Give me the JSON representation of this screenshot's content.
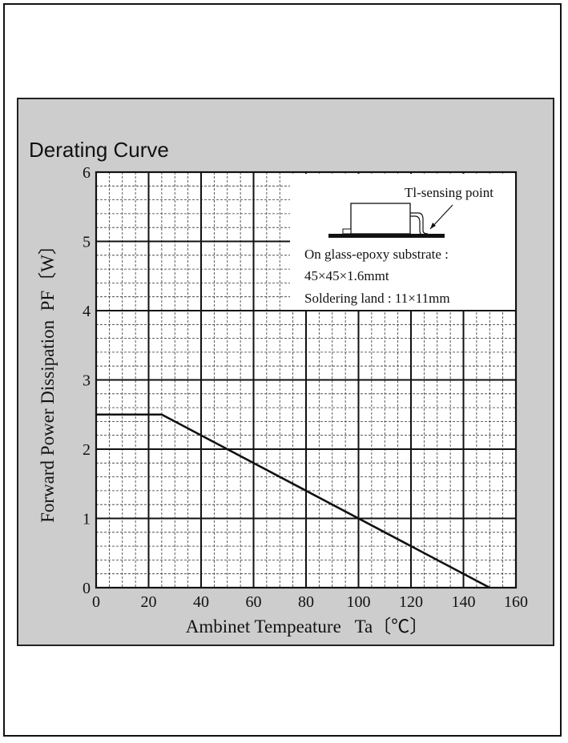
{
  "chart_data": {
    "type": "line",
    "title": "Derating Curve",
    "xlabel": "Ambinet Tempeature   Ta〔℃〕",
    "ylabel": "Forward Power Dissipation  PF〔W〕",
    "xlim": [
      0,
      160
    ],
    "ylim": [
      0,
      6
    ],
    "x_ticks": [
      0,
      20,
      40,
      60,
      80,
      100,
      120,
      140,
      160
    ],
    "y_ticks": [
      0,
      1,
      2,
      3,
      4,
      5,
      6
    ],
    "grid": true,
    "series": [
      {
        "x": [
          0,
          25,
          150
        ],
        "y": [
          2.5,
          2.5,
          0
        ]
      }
    ],
    "annotation": {
      "label": "Tl-sensing point",
      "lines": [
        "On glass-epoxy substrate :",
        "45×45×1.6mmt",
        "Soldering land : 11×11mm"
      ]
    },
    "colors": {
      "line": "#111111",
      "panel": "#cdcdcd",
      "plot": "#ffffff"
    }
  }
}
